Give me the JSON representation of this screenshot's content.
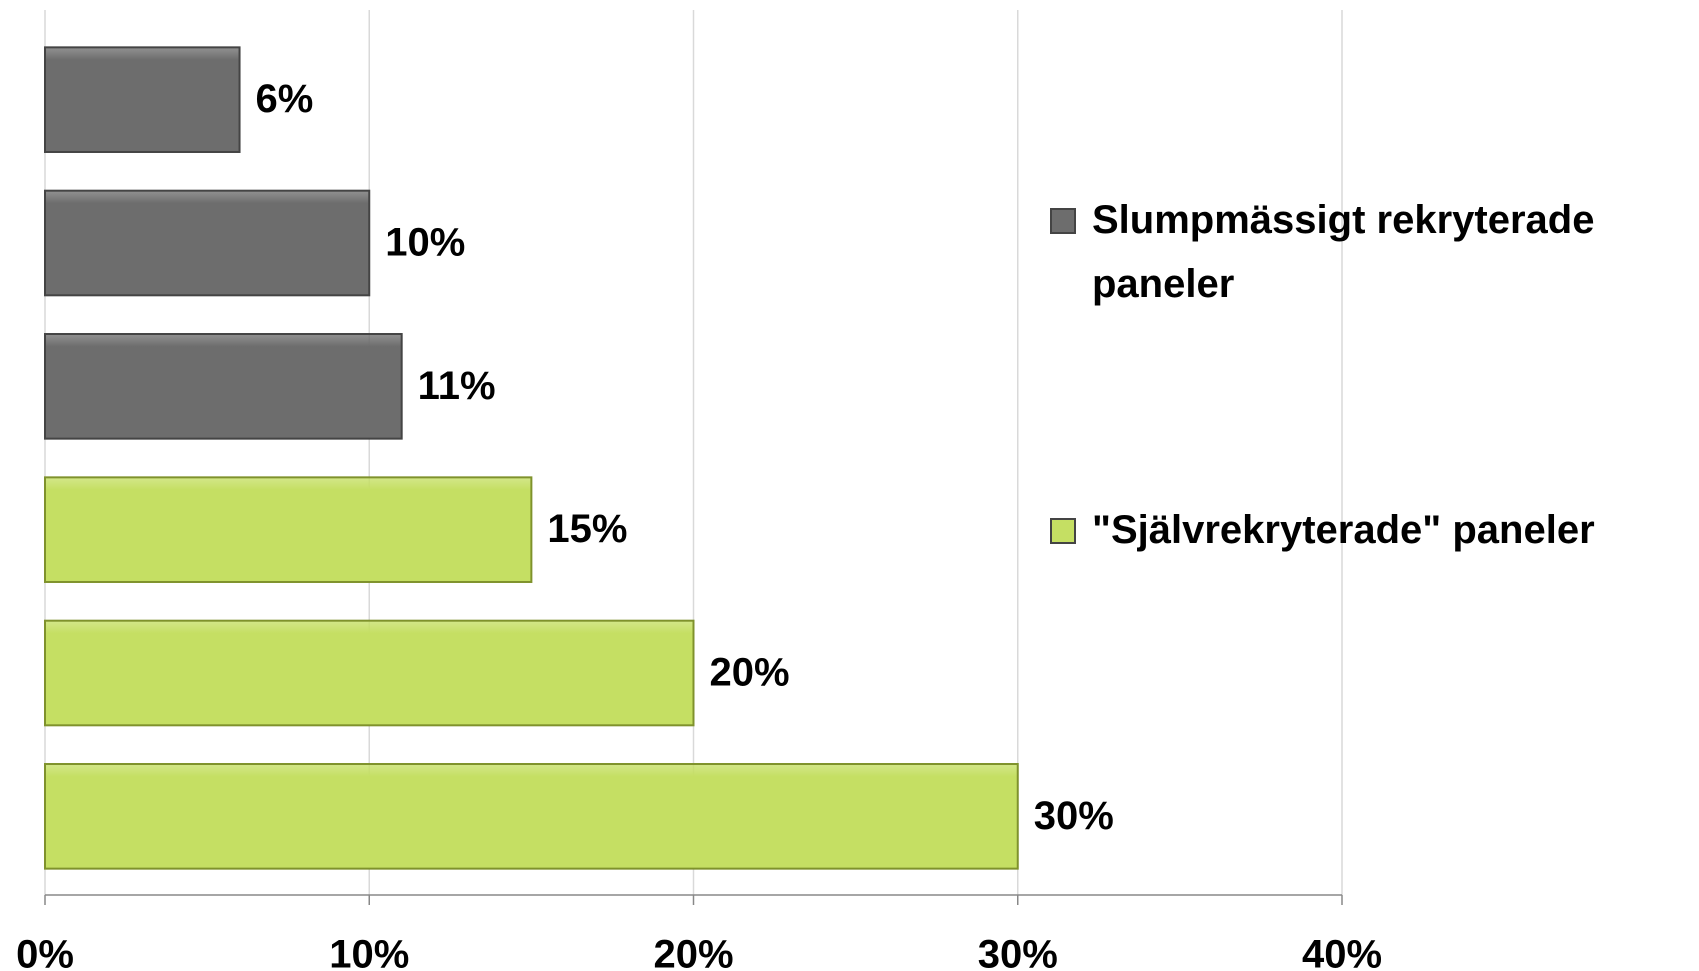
{
  "chart_data": {
    "type": "bar",
    "orientation": "horizontal",
    "categories": [
      null,
      null,
      null,
      null,
      null,
      null
    ],
    "series": [
      {
        "name": "Slumpmässigt rekryterade paneler",
        "color": "#6d6d6d",
        "values": [
          6,
          10,
          11,
          null,
          null,
          null
        ],
        "value_labels": [
          "6%",
          "10%",
          "11%",
          null,
          null,
          null
        ]
      },
      {
        "name": "\"Självrekryterade\" paneler",
        "color": "#c5df63",
        "values": [
          null,
          null,
          null,
          15,
          20,
          30
        ],
        "value_labels": [
          null,
          null,
          null,
          "15%",
          "20%",
          "30%"
        ]
      }
    ],
    "xlim": [
      0,
      40
    ],
    "xticks": [
      {
        "value": 0,
        "label": "0%"
      },
      {
        "value": 10,
        "label": "10%"
      },
      {
        "value": 20,
        "label": "20%"
      },
      {
        "value": 30,
        "label": "30%"
      },
      {
        "value": 40,
        "label": "40%"
      }
    ],
    "grid": true,
    "legend": "right"
  }
}
